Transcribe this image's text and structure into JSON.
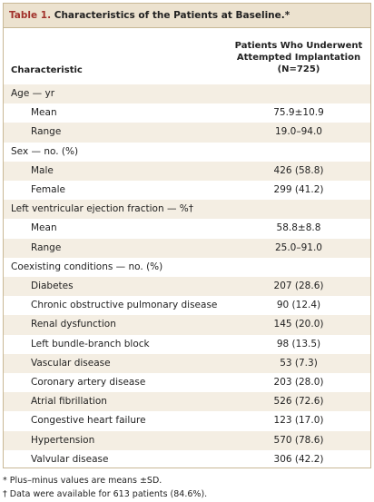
{
  "table": {
    "label": "Table 1.",
    "title": "Characteristics of the Patients at Baseline.*",
    "header": {
      "characteristic": "Characteristic",
      "value_lines": [
        "Patients Who Underwent",
        "Attempted Implantation",
        "(N=725)"
      ]
    },
    "groups": [
      {
        "label": "Age — yr",
        "rows": [
          [
            "Mean",
            "75.9±10.9"
          ],
          [
            "Range",
            "19.0–94.0"
          ]
        ]
      },
      {
        "label": "Sex — no. (%)",
        "rows": [
          [
            "Male",
            "426 (58.8)"
          ],
          [
            "Female",
            "299 (41.2)"
          ]
        ]
      },
      {
        "label": "Left ventricular ejection fraction — %†",
        "rows": [
          [
            "Mean",
            "58.8±8.8"
          ],
          [
            "Range",
            "25.0–91.0"
          ]
        ]
      },
      {
        "label": "Coexisting conditions — no. (%)",
        "rows": [
          [
            "Diabetes",
            "207 (28.6)"
          ],
          [
            "Chronic obstructive pulmonary disease",
            "90 (12.4)"
          ],
          [
            "Renal dysfunction",
            "145 (20.0)"
          ],
          [
            "Left bundle-branch block",
            "98 (13.5)"
          ],
          [
            "Vascular disease",
            "53 (7.3)"
          ],
          [
            "Coronary artery disease",
            "203 (28.0)"
          ],
          [
            "Atrial fibrillation",
            "526 (72.6)"
          ],
          [
            "Congestive heart failure",
            "123 (17.0)"
          ],
          [
            "Hypertension",
            "570 (78.6)"
          ],
          [
            "Valvular disease",
            "306 (42.2)"
          ]
        ]
      }
    ]
  },
  "footnotes": [
    "* Plus–minus values are means ±SD.",
    "† Data were available for 613 patients (84.6%)."
  ]
}
